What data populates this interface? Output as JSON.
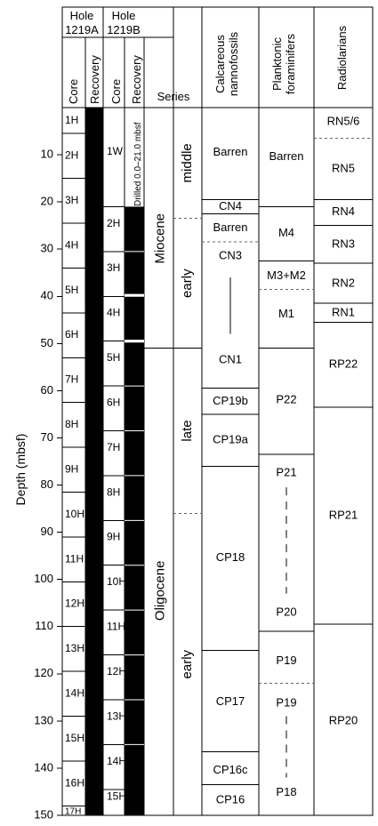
{
  "headers": {
    "hole_a": [
      "Hole",
      "1219A"
    ],
    "hole_b": [
      "Hole",
      "1219B"
    ],
    "core": "Core",
    "recovery": "Recovery",
    "series": "Series",
    "nanno": [
      "Calcareous",
      "nannofossils"
    ],
    "forams": [
      "Planktonic",
      "foraminifers"
    ],
    "radiolarians": "Radiolarians"
  },
  "depth_axis": {
    "label": "Depth (mbsf)",
    "range": [
      0,
      150
    ],
    "ticks": [
      10,
      20,
      30,
      40,
      50,
      60,
      70,
      80,
      90,
      100,
      110,
      120,
      130,
      140,
      150
    ]
  },
  "hole_1219A": {
    "cores": [
      {
        "label": "1H",
        "top": 0,
        "bottom": 5.5
      },
      {
        "label": "2H",
        "top": 5.5,
        "bottom": 15
      },
      {
        "label": "3H",
        "top": 15,
        "bottom": 24.5
      },
      {
        "label": "4H",
        "top": 24.5,
        "bottom": 34
      },
      {
        "label": "5H",
        "top": 34,
        "bottom": 43.5
      },
      {
        "label": "6H",
        "top": 43.5,
        "bottom": 53
      },
      {
        "label": "7H",
        "top": 53,
        "bottom": 62.5
      },
      {
        "label": "8H",
        "top": 62.5,
        "bottom": 72
      },
      {
        "label": "9H",
        "top": 72,
        "bottom": 81.5
      },
      {
        "label": "10H",
        "top": 81.5,
        "bottom": 91
      },
      {
        "label": "11H",
        "top": 91,
        "bottom": 100.5
      },
      {
        "label": "12H",
        "top": 100.5,
        "bottom": 110
      },
      {
        "label": "13H",
        "top": 110,
        "bottom": 119.5
      },
      {
        "label": "14H",
        "top": 119.5,
        "bottom": 129
      },
      {
        "label": "15H",
        "top": 129,
        "bottom": 138.5
      },
      {
        "label": "16H",
        "top": 138.5,
        "bottom": 148
      },
      {
        "label": "17H",
        "top": 148,
        "bottom": 150
      }
    ]
  },
  "hole_1219B": {
    "drilled_note": "Drilled 0.0–21.0 mbsf",
    "drilled_interval": [
      0,
      21
    ],
    "cores": [
      {
        "label": "1W",
        "top": 0,
        "bottom": 21
      },
      {
        "label": "2H",
        "top": 21,
        "bottom": 30.5
      },
      {
        "label": "3H",
        "top": 30.5,
        "bottom": 40
      },
      {
        "label": "4H",
        "top": 40,
        "bottom": 49.5
      },
      {
        "label": "5H",
        "top": 49.5,
        "bottom": 59
      },
      {
        "label": "6H",
        "top": 59,
        "bottom": 68.5
      },
      {
        "label": "7H",
        "top": 68.5,
        "bottom": 78
      },
      {
        "label": "8H",
        "top": 78,
        "bottom": 87.5
      },
      {
        "label": "9H",
        "top": 87.5,
        "bottom": 97
      },
      {
        "label": "10H",
        "top": 97,
        "bottom": 106.5
      },
      {
        "label": "11H",
        "top": 106.5,
        "bottom": 116
      },
      {
        "label": "12H",
        "top": 116,
        "bottom": 125.5
      },
      {
        "label": "13H",
        "top": 125.5,
        "bottom": 135
      },
      {
        "label": "14H",
        "top": 135,
        "bottom": 144.5
      },
      {
        "label": "15H",
        "top": 144.5,
        "bottom": 150
      }
    ],
    "recovery_gaps": [
      [
        39.5,
        40
      ],
      [
        49.2,
        49.8
      ]
    ]
  },
  "series": [
    {
      "label": "Miocene",
      "top": 0,
      "bottom": 51
    },
    {
      "label": "Oligocene",
      "top": 51,
      "bottom": 150
    }
  ],
  "subseries": [
    {
      "label": "middle",
      "top": 0,
      "bottom": 23.5,
      "boundary_bottom": "dashed"
    },
    {
      "label": "early",
      "top": 23.5,
      "bottom": 51,
      "boundary_bottom": "solid"
    },
    {
      "label": "late",
      "top": 51,
      "bottom": 86,
      "boundary_bottom": "dashed"
    },
    {
      "label": "early",
      "top": 86,
      "bottom": 150,
      "boundary_bottom": "none"
    }
  ],
  "nannofossils": {
    "zones": [
      {
        "label": "Barren",
        "top": 0,
        "bottom": 19.5,
        "boundary_bottom": "solid",
        "label_at": 9.5
      },
      {
        "label": "CN4",
        "top": 19.5,
        "bottom": 22.5,
        "boundary_bottom": "solid",
        "label_at": 21
      },
      {
        "label": "Barren",
        "top": 22.5,
        "bottom": 28.5,
        "boundary_bottom": "dashed",
        "label_at": 25.5
      },
      {
        "label": "CN3",
        "top": 28.5,
        "bottom": 59.5,
        "boundary_bottom": "solid",
        "label_at": 31.5
      },
      {
        "label": "CP19b",
        "top": 59.5,
        "bottom": 65,
        "boundary_bottom": "solid",
        "label_at": 62.3
      },
      {
        "label": "CP19a",
        "top": 65,
        "bottom": 76,
        "boundary_bottom": "solid",
        "label_at": 70.5
      },
      {
        "label": "CP18",
        "top": 76,
        "bottom": 115,
        "boundary_bottom": "solid",
        "label_at": 95.5
      },
      {
        "label": "CP17",
        "top": 115,
        "bottom": 136.5,
        "boundary_bottom": "solid",
        "label_at": 126
      },
      {
        "label": "CP16c",
        "top": 136.5,
        "bottom": 143.5,
        "boundary_bottom": "solid",
        "label_at": 140.5
      },
      {
        "label": "CP16",
        "top": 143.5,
        "bottom": 150,
        "boundary_bottom": "none",
        "label_at": 146.8
      }
    ],
    "range_labels": [
      {
        "label": "CN1",
        "label_at": 53.5,
        "line_from": 36,
        "line_to": 48
      }
    ]
  },
  "foraminifers": {
    "zones": [
      {
        "label": "Barren",
        "top": 0,
        "bottom": 21,
        "boundary_bottom": "solid",
        "label_at": 10.5
      },
      {
        "label": "M4",
        "top": 21,
        "bottom": 32.5,
        "boundary_bottom": "solid",
        "label_at": 26.7
      },
      {
        "label": "M3+M2",
        "top": 32.5,
        "bottom": 38.5,
        "boundary_bottom": "dashed",
        "label_at": 35.7
      },
      {
        "label": "M1",
        "top": 38.5,
        "bottom": 51,
        "boundary_bottom": "solid",
        "label_at": 43.8
      },
      {
        "label": "P22",
        "top": 51,
        "bottom": 73.5,
        "boundary_bottom": "solid",
        "label_at": 62
      },
      {
        "label": "P21",
        "top": 73.5,
        "bottom": 111,
        "boundary_bottom": "solid",
        "label_at": 77.5
      },
      {
        "label": "P19",
        "top": 111,
        "bottom": 122,
        "boundary_bottom": "dashed",
        "label_at": 117.3
      },
      {
        "label": "P19",
        "top": 122,
        "bottom": 150,
        "boundary_bottom": "none",
        "label_at": 126.3
      }
    ],
    "range_labels": [
      {
        "label": "P20",
        "label_at": 107,
        "attach": "above"
      },
      {
        "label": "P18",
        "label_at": 145.2,
        "attach": "above"
      }
    ],
    "dashed_ranges": [
      [
        80.5,
        103
      ],
      [
        129,
        142
      ]
    ]
  },
  "radiolarians": {
    "zones": [
      {
        "label": "RN5/6",
        "top": 0,
        "bottom": 6.5,
        "boundary_bottom": "dashed",
        "label_at": 3
      },
      {
        "label": "RN5",
        "top": 6.5,
        "bottom": 19.5,
        "boundary_bottom": "solid",
        "label_at": 13
      },
      {
        "label": "RN4",
        "top": 19.5,
        "bottom": 25,
        "boundary_bottom": "solid",
        "label_at": 22.2
      },
      {
        "label": "RN3",
        "top": 25,
        "bottom": 33,
        "boundary_bottom": "solid",
        "label_at": 29
      },
      {
        "label": "RN2",
        "top": 33,
        "bottom": 41.5,
        "boundary_bottom": "solid",
        "label_at": 37.3
      },
      {
        "label": "RN1",
        "top": 41.5,
        "bottom": 45.5,
        "boundary_bottom": "solid",
        "label_at": 43.5
      },
      {
        "label": "RP22",
        "top": 45.5,
        "bottom": 63.5,
        "boundary_bottom": "solid",
        "label_at": 54.5
      },
      {
        "label": "RP21",
        "top": 63.5,
        "bottom": 109.5,
        "boundary_bottom": "solid",
        "label_at": 86.5
      },
      {
        "label": "RP20",
        "top": 109.5,
        "bottom": 150,
        "boundary_bottom": "none",
        "label_at": 130
      }
    ]
  }
}
